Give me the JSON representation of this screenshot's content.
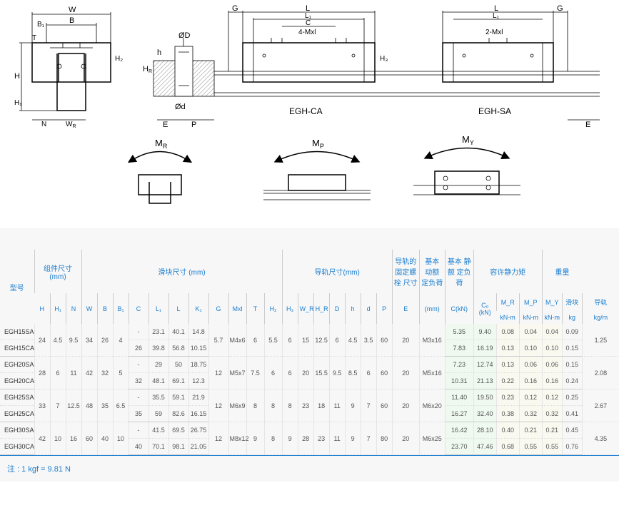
{
  "diagrams": {
    "cross_section": {
      "labels": [
        "W",
        "B₁",
        "B",
        "H",
        "T",
        "H₂",
        "N",
        "W_R",
        "H₁"
      ]
    },
    "rail": {
      "labels": [
        "G",
        "L",
        "L₁",
        "C",
        "4-Mxl",
        "2-Mxl",
        "E",
        "P",
        "ØD",
        "Ød",
        "H_R",
        "h",
        "H₃",
        "EGH-CA",
        "EGH-SA"
      ]
    },
    "moments": {
      "mr": "M_R",
      "mp": "M_P",
      "my": "M_Y"
    }
  },
  "table": {
    "group_headers": {
      "model": "型号",
      "assembly": "组件尺寸\n(mm)",
      "block": "滑块尺寸 (mm)",
      "rail": "导轨尺寸(mm)",
      "bolt": "导轨的\n固定螺栓\n尺寸",
      "dyn": "基本\n动额\n定负荷",
      "stat": "基本\n静额\n定负荷",
      "moment": "容许静力矩",
      "weight": "重量"
    },
    "sub_headers": [
      "H",
      "H₁",
      "N",
      "W",
      "B",
      "B₁",
      "C",
      "L₁",
      "L",
      "K₁",
      "G",
      "Mxl",
      "T",
      "H₂",
      "H₃",
      "W_R",
      "H_R",
      "D",
      "h",
      "d",
      "P",
      "E",
      "(mm)",
      "C(kN)",
      "C₀ (kN)",
      "M_R",
      "M_P",
      "M_Y",
      "滑块",
      "导轨"
    ],
    "unit_headers": {
      "mr": "kN-m",
      "mp": "kN-m",
      "my": "kN-m",
      "block_wt": "kg",
      "rail_wt": "kg/m"
    },
    "rows": [
      {
        "model": "EGH15SA",
        "H": "24",
        "H1": "4.5",
        "N": "9.5",
        "W": "34",
        "B": "26",
        "B1": "4",
        "C": "-",
        "L1": "23.1",
        "L": "40.1",
        "K1": "14.8",
        "G": "5.7",
        "Mxl": "M4x6",
        "T": "6",
        "H2": "5.5",
        "H3": "6",
        "WR": "15",
        "HR": "12.5",
        "D": "6",
        "h": "4.5",
        "d": "3.5",
        "P": "60",
        "E": "20",
        "bolt": "M3x16",
        "Cdyn": "5.35",
        "Cstat": "9.40",
        "MR": "0.08",
        "MP": "0.04",
        "MY": "0.04",
        "wb": "0.09",
        "wr": "1.25",
        "span": true
      },
      {
        "model": "EGH15CA",
        "C": "26",
        "L1": "39.8",
        "L": "56.8",
        "K1": "10.15",
        "Cdyn": "7.83",
        "Cstat": "16.19",
        "MR": "0.13",
        "MP": "0.10",
        "MY": "0.10",
        "wb": "0.15",
        "sep": true
      },
      {
        "model": "EGH20SA",
        "H": "28",
        "H1": "6",
        "N": "11",
        "W": "42",
        "B": "32",
        "B1": "5",
        "C": "-",
        "L1": "29",
        "L": "50",
        "K1": "18.75",
        "G": "12",
        "Mxl": "M5x7",
        "T": "7.5",
        "H2": "6",
        "H3": "6",
        "WR": "20",
        "HR": "15.5",
        "D": "9.5",
        "h": "8.5",
        "d": "6",
        "P": "60",
        "E": "20",
        "bolt": "M5x16",
        "Cdyn": "7.23",
        "Cstat": "12.74",
        "MR": "0.13",
        "MP": "0.06",
        "MY": "0.06",
        "wb": "0.15",
        "wr": "2.08",
        "span": true
      },
      {
        "model": "EGH20CA",
        "C": "32",
        "L1": "48.1",
        "L": "69.1",
        "K1": "12.3",
        "Cdyn": "10.31",
        "Cstat": "21.13",
        "MR": "0.22",
        "MP": "0.16",
        "MY": "0.16",
        "wb": "0.24",
        "sep": true
      },
      {
        "model": "EGH25SA",
        "H": "33",
        "H1": "7",
        "N": "12.5",
        "W": "48",
        "B": "35",
        "B1": "6.5",
        "C": "-",
        "L1": "35.5",
        "L": "59.1",
        "K1": "21.9",
        "G": "12",
        "Mxl": "M6x9",
        "T": "8",
        "H2": "8",
        "H3": "8",
        "WR": "23",
        "HR": "18",
        "D": "11",
        "h": "9",
        "d": "7",
        "P": "60",
        "E": "20",
        "bolt": "M6x20",
        "Cdyn": "11.40",
        "Cstat": "19.50",
        "MR": "0.23",
        "MP": "0.12",
        "MY": "0.12",
        "wb": "0.25",
        "wr": "2.67",
        "span": true
      },
      {
        "model": "EGH25CA",
        "C": "35",
        "L1": "59",
        "L": "82.6",
        "K1": "16.15",
        "Cdyn": "16.27",
        "Cstat": "32.40",
        "MR": "0.38",
        "MP": "0.32",
        "MY": "0.32",
        "wb": "0.41",
        "sep": true
      },
      {
        "model": "EGH30SA",
        "H": "42",
        "H1": "10",
        "N": "16",
        "W": "60",
        "B": "40",
        "B1": "10",
        "C": "-",
        "L1": "41.5",
        "L": "69.5",
        "K1": "26.75",
        "G": "12",
        "Mxl": "M8x12",
        "T": "9",
        "H2": "8",
        "H3": "9",
        "WR": "28",
        "HR": "23",
        "D": "11",
        "h": "9",
        "d": "7",
        "P": "80",
        "E": "20",
        "bolt": "M6x25",
        "Cdyn": "16.42",
        "Cstat": "28.10",
        "MR": "0.40",
        "MP": "0.21",
        "MY": "0.21",
        "wb": "0.45",
        "wr": "4.35",
        "span": true
      },
      {
        "model": "EGH30CA",
        "C": "40",
        "L1": "70.1",
        "L": "98.1",
        "K1": "21.05",
        "Cdyn": "23.70",
        "Cstat": "47.46",
        "MR": "0.68",
        "MP": "0.55",
        "MY": "0.55",
        "wb": "0.76",
        "sep": true
      }
    ]
  },
  "footnote": "注 : 1 kgf = 9.81 N",
  "colors": {
    "header_text": "#1a7dd0",
    "border": "#ccc",
    "row_border": "#e5e5e5"
  }
}
